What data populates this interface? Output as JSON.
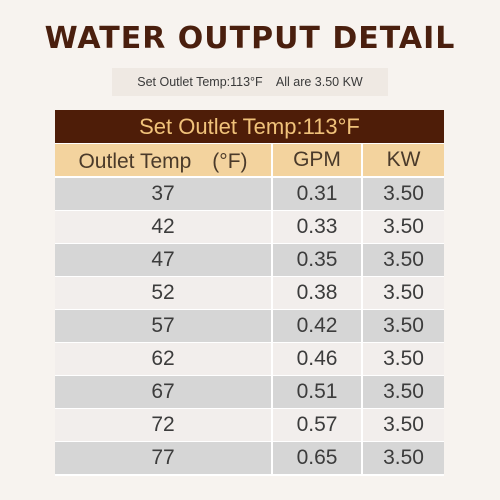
{
  "title": "WATER OUTPUT DETAIL",
  "subtitle": "Set Outlet Temp:113°F    All are 3.50 KW",
  "table": {
    "banner": "Set Outlet Temp:113°F",
    "headers": [
      "Outlet Temp　(°F)",
      "GPM",
      "KW"
    ],
    "rows": [
      [
        "37",
        "0.31",
        "3.50"
      ],
      [
        "42",
        "0.33",
        "3.50"
      ],
      [
        "47",
        "0.35",
        "3.50"
      ],
      [
        "52",
        "0.38",
        "3.50"
      ],
      [
        "57",
        "0.42",
        "3.50"
      ],
      [
        "62",
        "0.46",
        "3.50"
      ],
      [
        "67",
        "0.51",
        "3.50"
      ],
      [
        "72",
        "0.57",
        "3.50"
      ],
      [
        "77",
        "0.65",
        "3.50"
      ]
    ]
  },
  "colors": {
    "title": "#4a1f0e",
    "banner_bg": "#4e1d08",
    "banner_text": "#f0c27a",
    "header_bg": "#f3d39e",
    "row_dark": "#d6d6d6",
    "row_light": "#f2eeec"
  }
}
